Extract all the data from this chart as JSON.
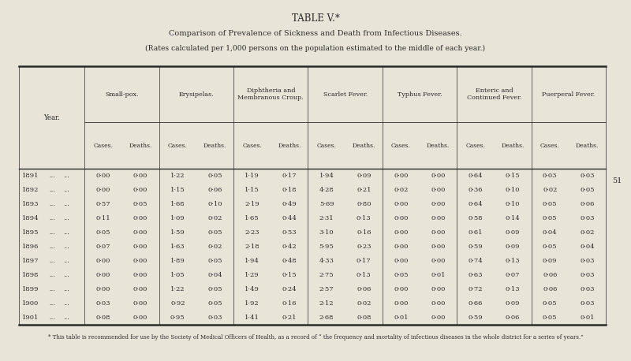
{
  "title": "TABLE V.*",
  "subtitle": "Comparison of Prevalence of Sickness and Death from Infectious Diseases.",
  "subtitle2": "(Rates calculated per 1,000 persons on the population estimated to the middle of each year.)",
  "footnote": "* This table is recommended for use by the Society of Medical Officers of Health, as a record of “ the frequency and mortality of infectious diseases in the whole district for a series of years.”",
  "bg_color": "#e8e4d8",
  "col_groups": [
    "Small-pox.",
    "Erysipelas.",
    "Diphtheria and\nMembranous Croup.",
    "Scarlet Fever.",
    "Typhus Fever.",
    "Enteric and\nContinued Fever.",
    "Puerperal Fever."
  ],
  "years": [
    "1891",
    "1892",
    "1893",
    "1894",
    "1895",
    "1896",
    "1897",
    "1898",
    "1899",
    "1900",
    "1901"
  ],
  "data": [
    [
      "0·00",
      "0·00",
      "1·22",
      "0·05",
      "1·19",
      "0·17",
      "1·94",
      "0·09",
      "0·00",
      "0·00",
      "0·64",
      "0·15",
      "0·03",
      "0·03"
    ],
    [
      "0·00",
      "0·00",
      "1·15",
      "0·06",
      "1·15",
      "0·18",
      "4·28",
      "0·21",
      "0·02",
      "0·00",
      "0·36",
      "0·10",
      "0·02",
      "0·05"
    ],
    [
      "0·57",
      "0·05",
      "1·68",
      "0·10",
      "2·19",
      "0·49",
      "5·69",
      "0·80",
      "0·00",
      "0·00",
      "0·64",
      "0·10",
      "0·05",
      "0·06"
    ],
    [
      "0·11",
      "0·00",
      "1·09",
      "0·02",
      "1·65",
      "0·44",
      "2·31",
      "0·13",
      "0·00",
      "0·00",
      "0·58",
      "0·14",
      "0·05",
      "0·03"
    ],
    [
      "0·05",
      "0·00",
      "1·59",
      "0·05",
      "2·23",
      "0·53",
      "3·10",
      "0·16",
      "0·00",
      "0·00",
      "0·61",
      "0·09",
      "0·04",
      "0·02"
    ],
    [
      "0·07",
      "0·00",
      "1·63",
      "0·02",
      "2·18",
      "0·42",
      "5·95",
      "0·23",
      "0·00",
      "0·00",
      "0·59",
      "0·09",
      "0·05",
      "0·04"
    ],
    [
      "0·00",
      "0·00",
      "1·89",
      "0·05",
      "1·94",
      "0·48",
      "4·33",
      "0·17",
      "0·00",
      "0·00",
      "0·74",
      "0·13",
      "0·09",
      "0·03"
    ],
    [
      "0·00",
      "0·00",
      "1·05",
      "0·04",
      "1·29",
      "0·15",
      "2·75",
      "0·13",
      "0·05",
      "0·01",
      "0·63",
      "0·07",
      "0·06",
      "0·03"
    ],
    [
      "0·00",
      "0·00",
      "1·22",
      "0·05",
      "1·49",
      "0·24",
      "2·57",
      "0·06",
      "0·00",
      "0·00",
      "0·72",
      "0·13",
      "0·06",
      "0·03"
    ],
    [
      "0·03",
      "0·00",
      "0·92",
      "0·05",
      "1·92",
      "0·16",
      "2·12",
      "0·02",
      "0·00",
      "0·00",
      "0·66",
      "0·09",
      "0·05",
      "0·03"
    ],
    [
      "0·08",
      "0·00",
      "0·95",
      "0·03",
      "1·41",
      "0·21",
      "2·68",
      "0·08",
      "0·01",
      "0·00",
      "0·59",
      "0·06",
      "0·05",
      "0·01"
    ]
  ]
}
